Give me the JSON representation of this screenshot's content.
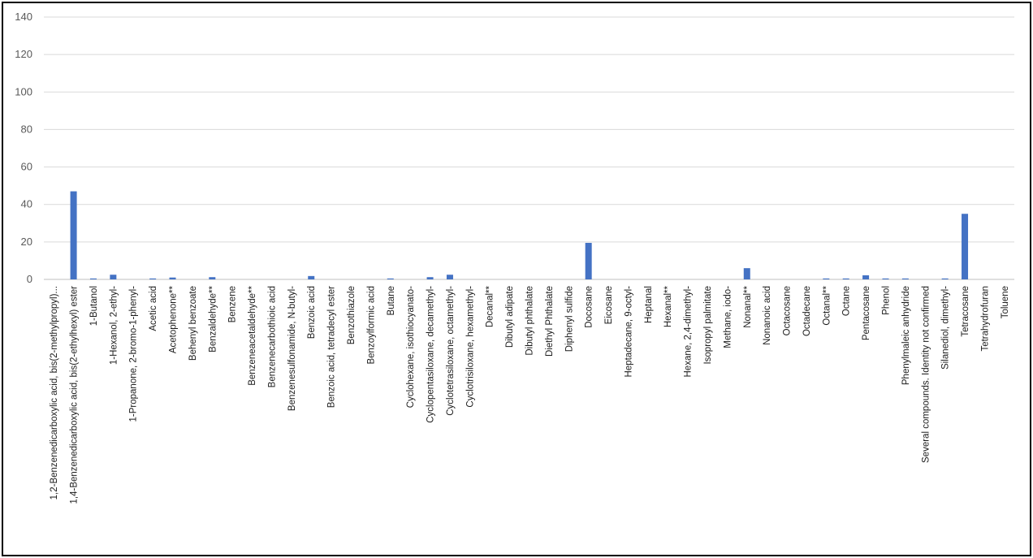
{
  "chart_data": {
    "type": "bar",
    "ylim": [
      0,
      140
    ],
    "yticks": [
      0,
      20,
      40,
      60,
      80,
      100,
      120,
      140
    ],
    "grid": true,
    "legend": "none",
    "bar_color": "#4472c4",
    "categories": [
      "1,2-Benzenedicarboxylic acid, bis(2-methylpropyl)...",
      "1,4-Benzenedicarboxylic acid, bis(2-ethylhexyl) ester",
      "1-Butanol",
      "1-Hexanol, 2-ethyl-",
      "1-Propanone, 2-bromo-1-phenyl-",
      "Acetic acid",
      "Acetophenone**",
      "Behenyl benzoate",
      "Benzaldehyde**",
      "Benzene",
      "Benzeneacetaldehyde**",
      "Benzenecarbothioic acid",
      "Benzenesulfonamide, N-butyl-",
      "Benzoic acid",
      "Benzoic acid, tetradecyl ester",
      "Benzothiazole",
      "Benzoylformic acid",
      "Butane",
      "Cyclohexane, isothiocyanato-",
      "Cyclopentasiloxane, decamethyl-",
      "Cyclotetrasiloxane, octamethyl-",
      "Cyclotrisiloxane, hexamethyl-",
      "Decanal**",
      "Dibutyl adipate",
      "Dibutyl phthalate",
      "Diethyl Phthalate",
      "Diphenyl sulfide",
      "Docosane",
      "Eicosane",
      "Heptadecane, 9-octyl-",
      "Heptanal",
      "Hexanal**",
      "Hexane, 2,4-dimethyl-",
      "Isopropyl palmitate",
      "Methane, iodo-",
      "Nonanal**",
      "Nonanoic acid",
      "Octacosane",
      "Octadecane",
      "Octanal**",
      "Octane",
      "Pentacosane",
      "Phenol",
      "Phenylmaleic anhydride",
      "Several compounds. Identity not confirmed",
      "Silanediol, dimethyl-",
      "Tetracosane",
      "Tetrahydrofuran",
      "Toluene"
    ],
    "values": [
      0,
      47,
      0.5,
      2.5,
      0,
      0.5,
      1,
      0,
      1.2,
      0,
      0,
      0,
      0,
      1.8,
      0,
      0,
      0,
      0.5,
      0,
      1.2,
      2.5,
      0,
      0,
      0,
      0,
      0,
      0,
      19.5,
      0,
      0,
      0,
      0,
      0,
      0,
      0,
      6,
      0,
      0,
      0,
      0.5,
      0.5,
      2.2,
      0.5,
      0.5,
      0,
      0.5,
      35,
      0,
      0
    ]
  }
}
